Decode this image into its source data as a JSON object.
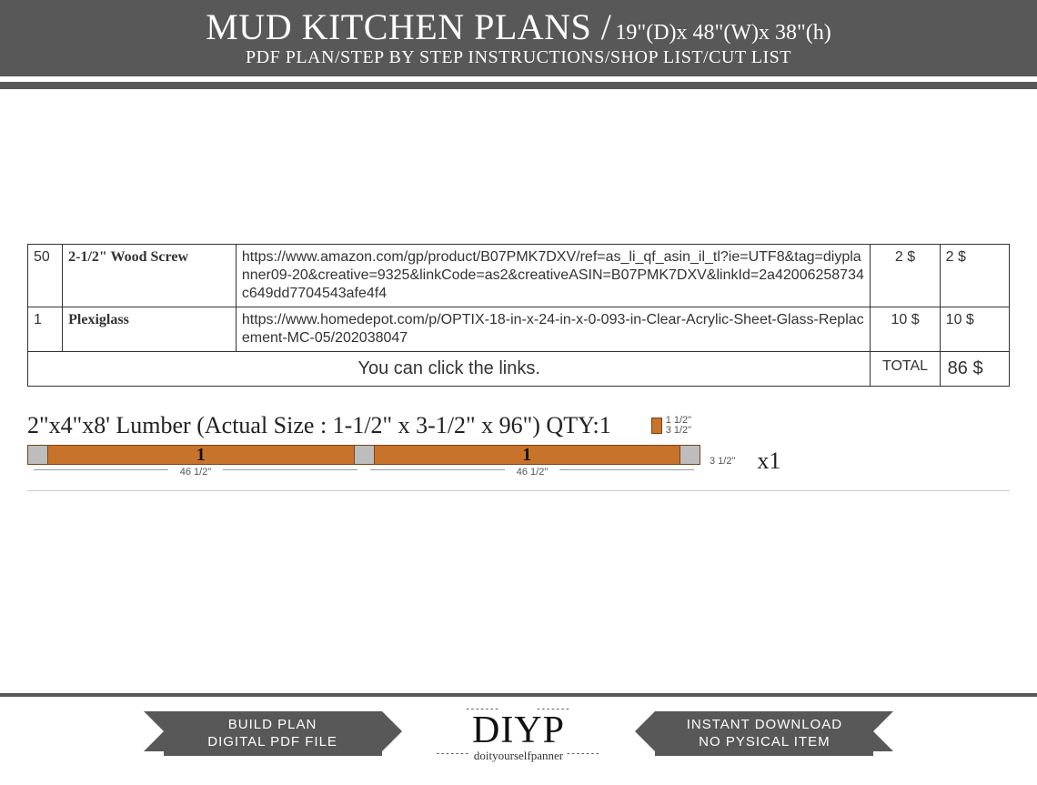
{
  "header": {
    "title_main": "MUD KITCHEN PLANS /",
    "title_dims": " 19\"(D)x 48\"(W)x 38\"(h)",
    "subtitle": "PDF PLAN/STEP BY STEP INSTRUCTIONS/SHOP LIST/CUT LIST"
  },
  "colors": {
    "band": "#585858",
    "wood": "#c8732b",
    "wood_border": "#7a4416",
    "pad": "#bdbdbd"
  },
  "shop_list": {
    "rows": [
      {
        "qty": "50",
        "item": "2-1/2\" Wood Screw",
        "link": "https://www.amazon.com/gp/product/B07PMK7DXV/ref=as_li_qf_asin_il_tl?ie=UTF8&tag=diyplanner09-20&creative=9325&linkCode=as2&creativeASIN=B07PMK7DXV&linkId=2a42006258734c649dd7704543afe4f4",
        "unit": "2 $",
        "ext": "2 $"
      },
      {
        "qty": "1",
        "item": "Plexiglass",
        "link": "https://www.homedepot.com/p/OPTIX-18-in-x-24-in-x-0-093-in-Clear-Acrylic-Sheet-Glass-Replacement-MC-05/202038047",
        "unit": "10 $",
        "ext": "10 $"
      }
    ],
    "footer_msg": "You can click the links.",
    "total_label": "TOTAL",
    "total_value": "86 $"
  },
  "lumber": {
    "heading": "2\"x4\"x8' Lumber (Actual Size : 1-1/2\" x 3-1/2\" x 96\") QTY:1",
    "cross_w": "1 1/2\"",
    "cross_h": "3 1/2\"",
    "segments": [
      {
        "label": "1",
        "dim": "46 1/2\""
      },
      {
        "label": "1",
        "dim": "46 1/2\""
      }
    ],
    "side_dim": "3 1/2\"",
    "multiplier": "x1"
  },
  "footer": {
    "left_ribbon_l1": "BUILD PLAN",
    "left_ribbon_l2": "DIGITAL PDF FILE",
    "right_ribbon_l1": "INSTANT DOWNLOAD",
    "right_ribbon_l2": "NO PYSICAL ITEM",
    "logo_big": "DIYP",
    "logo_small": "doityourselfpanner"
  }
}
